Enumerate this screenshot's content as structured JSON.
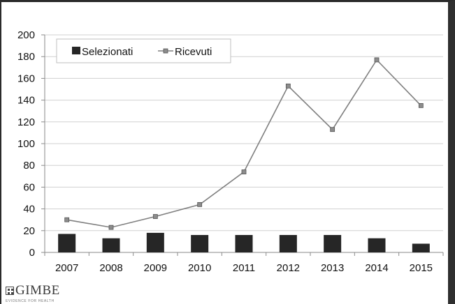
{
  "chart_data": {
    "type": "bar",
    "categories": [
      "2007",
      "2008",
      "2009",
      "2010",
      "2011",
      "2012",
      "2013",
      "2014",
      "2015"
    ],
    "series": [
      {
        "name": "Selezionati",
        "kind": "bar",
        "color": "#262626",
        "values": [
          17,
          13,
          18,
          16,
          16,
          16,
          16,
          13,
          8
        ]
      },
      {
        "name": "Ricevuti",
        "kind": "line",
        "color": "#7f7f7f",
        "marker_color": "#8c8c8c",
        "values": [
          30,
          23,
          33,
          44,
          74,
          153,
          113,
          177,
          135
        ]
      }
    ],
    "title": "",
    "xlabel": "",
    "ylabel": "",
    "ylim": [
      0,
      200
    ],
    "yticks": [
      "0",
      "20",
      "40",
      "60",
      "80",
      "100",
      "120",
      "140",
      "160",
      "180",
      "200"
    ],
    "grid": true,
    "legend_position": "top-left"
  },
  "branding": {
    "logo_name": "GIMBE",
    "logo_tagline": "EVIDENCE FOR HEALTH"
  }
}
